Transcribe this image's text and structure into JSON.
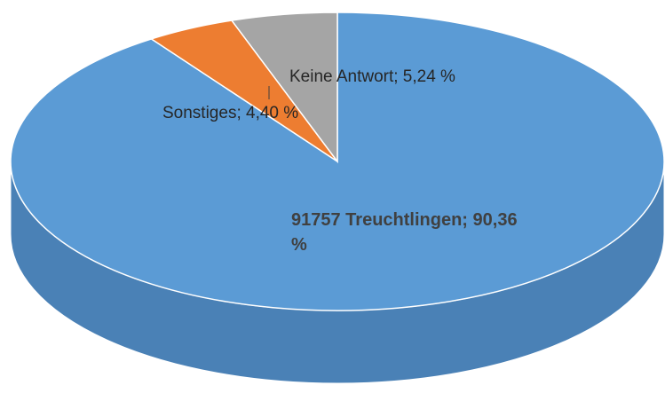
{
  "chart_data": {
    "type": "pie",
    "categories": [
      "91757 Treuchtlingen",
      "Sonstiges",
      "Keine Antwort"
    ],
    "values": [
      90.36,
      4.4,
      5.24
    ],
    "value_labels": [
      "91757 Treuchtlingen; 90,36 %",
      "Sonstiges; 4,40 %",
      "Keine Antwort; 5,24 %"
    ],
    "colors": [
      "#5b9bd5",
      "#ed7d31",
      "#a5a5a5"
    ],
    "side_colors": [
      "#4a81b6",
      "#c4672a",
      "#8a8a8a"
    ]
  }
}
